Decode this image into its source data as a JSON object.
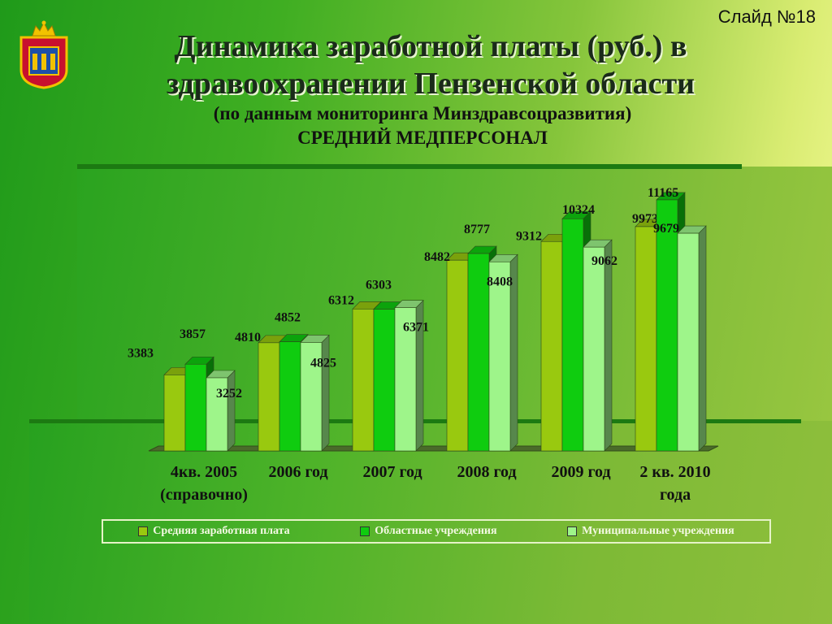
{
  "slide_number": "Слайд №18",
  "title_line1": "Динамика заработной платы (руб.) в",
  "title_line2": "здравоохранении Пензенской области",
  "subtitle": "(по данным мониторинга Минздравсоцразвития)",
  "subtitle2": "СРЕДНИЙ МЕДПЕРСОНАЛ",
  "colors": {
    "series1": "#99c90f",
    "series2": "#0fcc0f",
    "series3": "#9ef58a"
  },
  "chart_data": {
    "type": "bar",
    "categories": [
      [
        "4кв. 2005",
        "(справочно)"
      ],
      [
        "2006 год"
      ],
      [
        "2007 год"
      ],
      [
        "2008 год"
      ],
      [
        "2009 год"
      ],
      [
        "2 кв. 2010",
        "года"
      ]
    ],
    "series": [
      {
        "name": "Средняя заработная плата",
        "values": [
          3383,
          4810,
          6312,
          8482,
          9312,
          9973
        ]
      },
      {
        "name": "Областные учреждения",
        "values": [
          3857,
          4852,
          6303,
          8777,
          10324,
          11165
        ]
      },
      {
        "name": "Муниципальные учреждения",
        "values": [
          3252,
          4825,
          6371,
          8408,
          9062,
          9679
        ]
      }
    ],
    "ylim": [
      0,
      11500
    ],
    "legend_position": "bottom"
  }
}
